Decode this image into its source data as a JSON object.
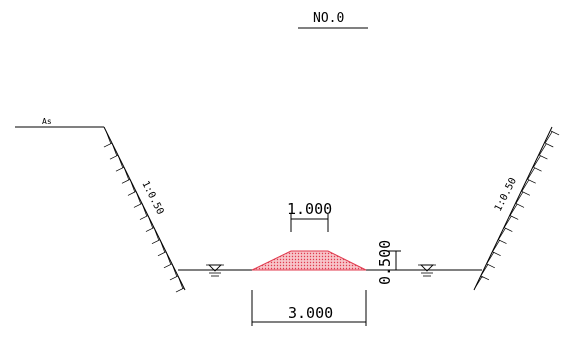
{
  "drawing": {
    "section_title": "NO.0",
    "left_surface_label": "As",
    "left_slope_label": "1:0.50",
    "right_slope_label": "1:0.50",
    "top_width_label": "1.000",
    "bottom_width_label": "3.000",
    "height_label": "0.500",
    "water_level_symbol": "water-level-icon",
    "fill_color": "#e85a6a",
    "line_color": "#000000"
  }
}
